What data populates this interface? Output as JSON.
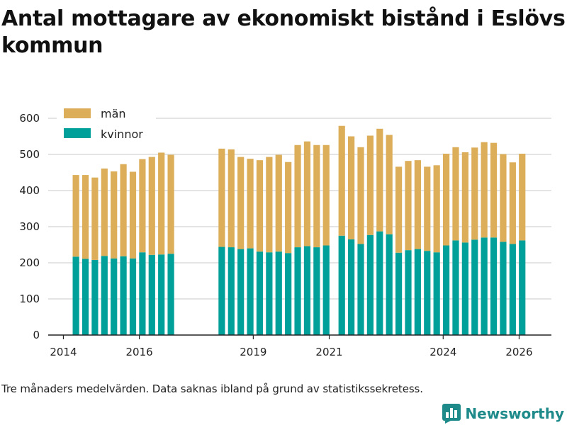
{
  "title": "Antal mottagare av ekonomiskt bistånd i Eslövs kommun",
  "caption": "Tre månaders medelvärden. Data saknas ibland på grund av statistikssekretess.",
  "brand": {
    "name": "Newsworthy",
    "icon": "bar-chart-logo-icon"
  },
  "colors": {
    "men": "#dcae5a",
    "women": "#00a09a",
    "grid": "#dcdcdc",
    "axis": "#222222"
  },
  "chart_data": {
    "type": "bar",
    "stacked": true,
    "title": "Antal mottagare av ekonomiskt bistånd i Eslövs kommun",
    "xlabel": "",
    "ylabel": "",
    "ylim": [
      0,
      620
    ],
    "yticks": [
      0,
      100,
      200,
      300,
      400,
      500,
      600
    ],
    "xlim": [
      2013.6,
      2026.85
    ],
    "xticks": [
      2014,
      2016,
      2019,
      2021,
      2024,
      2026
    ],
    "legend": {
      "position": "top-left"
    },
    "grid": true,
    "x": [
      2014.33,
      2014.58,
      2014.83,
      2015.08,
      2015.33,
      2015.58,
      2015.83,
      2016.08,
      2016.33,
      2016.58,
      2016.83,
      2018.17,
      2018.42,
      2018.67,
      2018.92,
      2019.17,
      2019.42,
      2019.67,
      2019.92,
      2020.17,
      2020.42,
      2020.67,
      2020.92,
      2021.33,
      2021.58,
      2021.83,
      2022.08,
      2022.33,
      2022.58,
      2022.83,
      2023.08,
      2023.33,
      2023.58,
      2023.83,
      2024.08,
      2024.33,
      2024.58,
      2024.83,
      2025.08,
      2025.33,
      2025.58,
      2025.83,
      2026.08
    ],
    "series": [
      {
        "name": "kvinnor",
        "color": "#00a09a",
        "values": [
          217,
          211,
          208,
          219,
          212,
          218,
          212,
          229,
          222,
          223,
          225,
          244,
          243,
          238,
          240,
          231,
          229,
          231,
          227,
          243,
          246,
          243,
          248,
          275,
          265,
          252,
          277,
          287,
          279,
          228,
          235,
          238,
          233,
          229,
          248,
          262,
          256,
          264,
          270,
          270,
          258,
          252,
          262
        ]
      },
      {
        "name": "män",
        "color": "#dcae5a",
        "values": [
          226,
          232,
          228,
          242,
          241,
          255,
          240,
          258,
          271,
          282,
          274,
          272,
          271,
          255,
          248,
          253,
          264,
          268,
          252,
          283,
          290,
          283,
          278,
          304,
          285,
          268,
          275,
          284,
          275,
          238,
          247,
          246,
          233,
          241,
          254,
          258,
          250,
          255,
          264,
          262,
          243,
          226,
          240
        ]
      }
    ]
  }
}
